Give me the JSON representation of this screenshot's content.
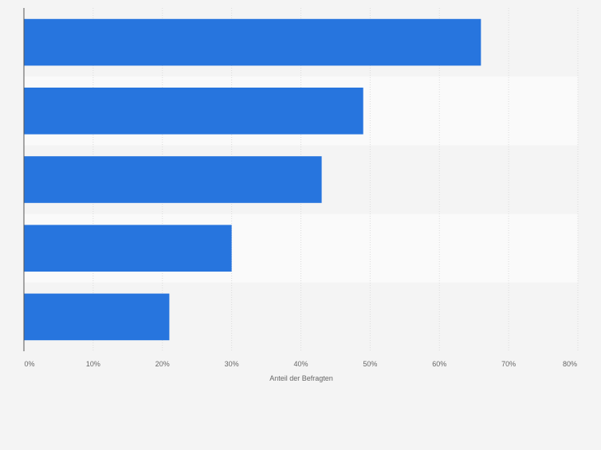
{
  "chart_data": {
    "type": "bar",
    "orientation": "horizontal",
    "categories": [
      "",
      "",
      "",
      "",
      ""
    ],
    "values": [
      66,
      49,
      43,
      30,
      21
    ],
    "xlabel": "Anteil der Befragten",
    "ylabel": "",
    "xlim": [
      0,
      80
    ],
    "x_ticks": [
      "0%",
      "10%",
      "20%",
      "30%",
      "40%",
      "50%",
      "60%",
      "70%",
      "80%"
    ],
    "x_tick_values": [
      0,
      10,
      20,
      30,
      40,
      50,
      60,
      70,
      80
    ],
    "grid": "vertical-dashed",
    "bar_color": "#2775de",
    "band_colors": [
      "#f4f4f4",
      "#fafafa"
    ]
  }
}
